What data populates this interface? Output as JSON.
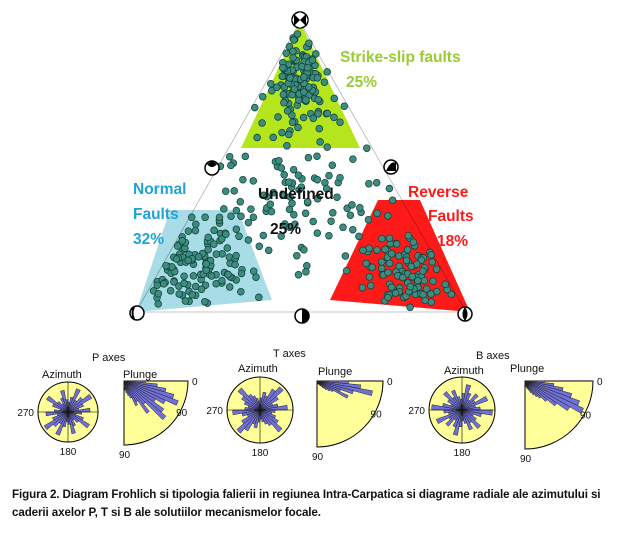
{
  "ternary": {
    "strike_slip": {
      "label_line1": "Strike-slip faults",
      "label_line2": "25%",
      "color": "#99cc33"
    },
    "normal": {
      "label_line1": "Normal",
      "label_line2": "Faults",
      "label_line3": "32%",
      "color": "#1ea3d8"
    },
    "reverse": {
      "label_line1": "Reverse",
      "label_line2": "Faults",
      "label_line3": "18%",
      "color": "#ff1a1a"
    },
    "undefined": {
      "label_line1": "Undefined",
      "label_line2": "25%"
    },
    "colors": {
      "normal_fill": "#a8dce6",
      "strike_fill": "#b5e61d",
      "reverse_fill": "#ff1a1a",
      "dot": "#3c8c80",
      "dot_edge": "#0f3d36"
    }
  },
  "rose_groups": [
    {
      "title": "P axes",
      "azimuth_label": "Azimuth",
      "plunge_label": "Plunge",
      "az_tick_left": "270",
      "az_tick_bottom": "180",
      "pl_tick_0": "0",
      "pl_tick_90_right": "90",
      "pl_tick_90_bottom": "90"
    },
    {
      "title": "T axes",
      "azimuth_label": "Azimuth",
      "plunge_label": "Plunge",
      "az_tick_left": "270",
      "az_tick_bottom": "180",
      "pl_tick_0": "0",
      "pl_tick_90_right": "90",
      "pl_tick_90_bottom": "90"
    },
    {
      "title": "B axes",
      "azimuth_label": "Azimuth",
      "plunge_label": "Plunge",
      "az_tick_left": "270",
      "az_tick_bottom": "180",
      "pl_tick_0": "0",
      "pl_tick_90_right": "90",
      "pl_tick_90_bottom": "90"
    }
  ],
  "rose_colors": {
    "background": "#ffff99",
    "petal": "#6f70d8"
  },
  "caption": "Figura 2. Diagram Frohlich si tipologia falierii in regiunea Intra-Carpatica si diagrame radiale ale azimutului si caderii axelor P, T si B ale solutiilor mecanismelor focale."
}
